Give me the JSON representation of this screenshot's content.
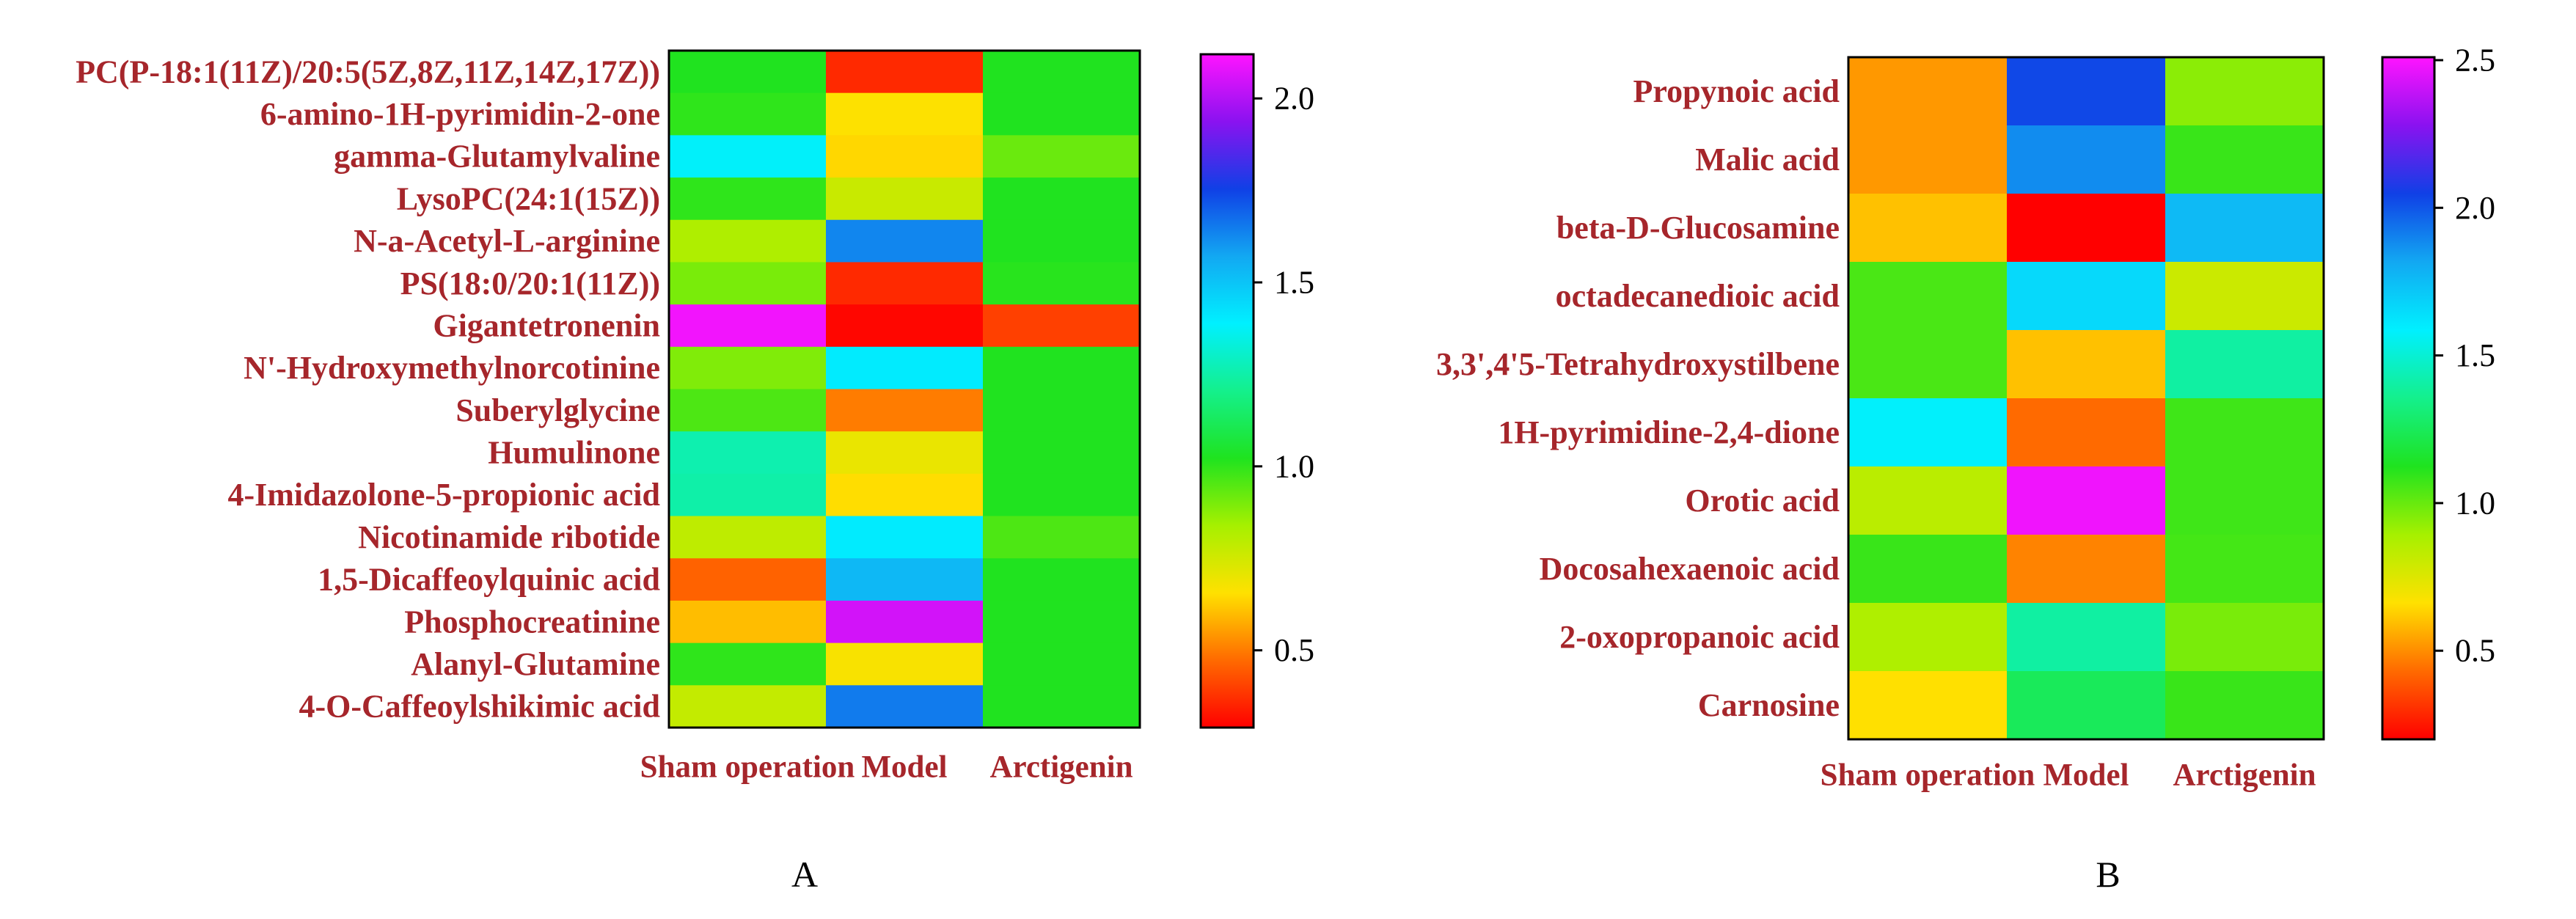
{
  "chart_data": [
    {
      "type": "heatmap",
      "panel_label": "A",
      "columns": [
        "Sham operation",
        "Model",
        "Arctigenin"
      ],
      "rows": [
        "PC(P-18:1(11Z)/20:5(5Z,8Z,11Z,14Z,17Z))",
        "6-amino-1H-pyrimidin-2-one",
        "gamma-Glutamylvaline",
        "LysoPC(24:1(15Z))",
        "N-a-Acetyl-L-arginine",
        "PS(18:0/20:1(11Z))",
        "Gigantetronenin",
        "N'-Hydroxymethylnorcotinine",
        "Suberylglycine",
        "Humulinone",
        "4-Imidazolone-5-propionic acid",
        "Nicotinamide ribotide",
        "1,5-Dicaffeoylquinic acid",
        "Phosphocreatinine",
        "Alanyl-Glutamine",
        "4-O-Caffeoylshikimic acid"
      ],
      "values": [
        [
          1.02,
          0.36,
          1.02
        ],
        [
          1.0,
          0.66,
          1.02
        ],
        [
          1.38,
          0.64,
          0.92
        ],
        [
          1.0,
          0.77,
          1.02
        ],
        [
          0.82,
          1.63,
          1.02
        ],
        [
          0.9,
          0.36,
          1.01
        ],
        [
          2.1,
          0.3,
          0.4
        ],
        [
          0.89,
          1.4,
          1.02
        ],
        [
          0.96,
          0.5,
          1.02
        ],
        [
          1.26,
          0.7,
          1.02
        ],
        [
          1.25,
          0.65,
          1.02
        ],
        [
          0.79,
          1.4,
          0.96
        ],
        [
          0.46,
          1.53,
          1.02
        ],
        [
          0.6,
          2.05,
          1.02
        ],
        [
          1.0,
          0.67,
          1.02
        ],
        [
          0.78,
          1.65,
          1.02
        ]
      ],
      "colorbar": {
        "range": [
          0.29,
          2.12
        ],
        "ticks": [
          0.5,
          1.0,
          1.5,
          2.0
        ],
        "tick_labels": [
          "0.5",
          "1.0",
          "1.5",
          "2.0"
        ]
      }
    },
    {
      "type": "heatmap",
      "panel_label": "B",
      "columns": [
        "Sham operation",
        "Model",
        "Arctigenin"
      ],
      "rows": [
        "Propynoic acid",
        "Malic acid",
        "beta-D-Glucosamine",
        "octadecanedioic acid",
        "3,3',4'5-Tetrahydroxystilbene",
        "1H-pyrimidine-2,4-dione",
        "Orotic acid",
        "Docosahexaenoic acid",
        "2-oxopropanoic acid",
        "Carnosine"
      ],
      "values": [
        [
          0.52,
          2.03,
          0.94
        ],
        [
          0.52,
          1.88,
          1.08
        ],
        [
          0.6,
          0.2,
          1.76
        ],
        [
          1.05,
          1.66,
          0.8
        ],
        [
          1.05,
          0.6,
          1.4
        ],
        [
          1.58,
          0.43,
          1.07
        ],
        [
          0.84,
          2.48,
          1.07
        ],
        [
          1.08,
          0.48,
          1.06
        ],
        [
          0.87,
          1.4,
          0.97
        ],
        [
          0.66,
          1.25,
          1.08
        ]
      ],
      "colorbar": {
        "range": [
          0.2,
          2.51
        ],
        "ticks": [
          0.5,
          1.0,
          1.5,
          2.0,
          2.5
        ],
        "tick_labels": [
          "0.5",
          "1.0",
          "1.5",
          "2.0",
          "2.5"
        ]
      }
    }
  ],
  "colormap": [
    "#ff0000",
    "#ff6a00",
    "#ffe100",
    "#a6f000",
    "#1fe31f",
    "#14f08c",
    "#00f0ff",
    "#12a8f2",
    "#1040e6",
    "#8a12f0",
    "#ff14ff"
  ],
  "colors": {
    "label_text": "#a6262b",
    "tick_text": "#000000",
    "frame": "#000000",
    "background": "#ffffff"
  }
}
